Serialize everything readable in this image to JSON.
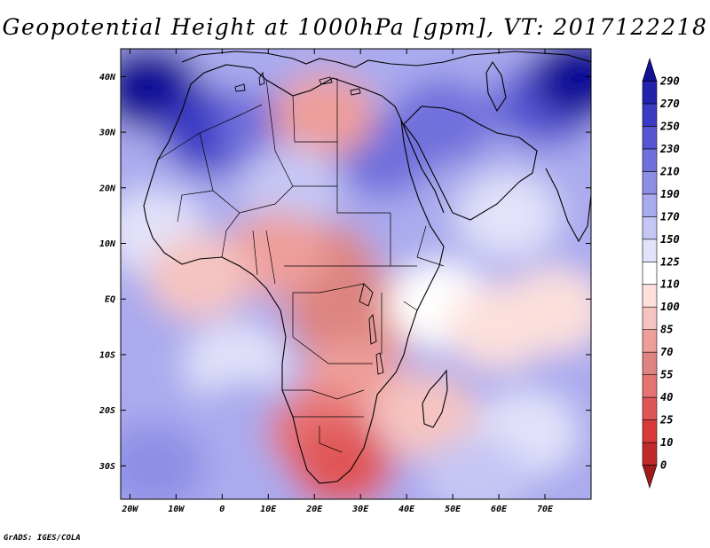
{
  "title": "Geopotential Height at 1000hPa [gpm], VT: 2017122218",
  "credit": "GrADS: IGES/COLA",
  "chart_data": {
    "type": "heatmap",
    "title": "Geopotential Height at 1000hPa [gpm], VT: 2017122218",
    "lon_range": [
      -22,
      80
    ],
    "lat_range": [
      -36,
      45
    ],
    "x_ticks": [
      {
        "value": -20,
        "label": "20W"
      },
      {
        "value": -10,
        "label": "10W"
      },
      {
        "value": 0,
        "label": "0"
      },
      {
        "value": 10,
        "label": "10E"
      },
      {
        "value": 20,
        "label": "20E"
      },
      {
        "value": 30,
        "label": "30E"
      },
      {
        "value": 40,
        "label": "40E"
      },
      {
        "value": 50,
        "label": "50E"
      },
      {
        "value": 60,
        "label": "60E"
      },
      {
        "value": 70,
        "label": "70E"
      }
    ],
    "y_ticks": [
      {
        "value": 40,
        "label": "40N"
      },
      {
        "value": 30,
        "label": "30N"
      },
      {
        "value": 20,
        "label": "20N"
      },
      {
        "value": 10,
        "label": "10N"
      },
      {
        "value": 0,
        "label": "EQ"
      },
      {
        "value": -10,
        "label": "10S"
      },
      {
        "value": -20,
        "label": "20S"
      },
      {
        "value": -30,
        "label": "30S"
      }
    ],
    "colorbar": {
      "labels": [
        "0",
        "10",
        "25",
        "40",
        "55",
        "70",
        "85",
        "100",
        "110",
        "125",
        "150",
        "170",
        "190",
        "210",
        "230",
        "250",
        "270",
        "290"
      ],
      "colors": [
        "#a01a1a",
        "#c12a2a",
        "#d83a3a",
        "#e05656",
        "#e67272",
        "#dd8480",
        "#ee9e9a",
        "#f6c4c0",
        "#fde0dc",
        "#ffffff",
        "#e2e2fa",
        "#c6c6f4",
        "#aaaaee",
        "#8e8ee6",
        "#7070dc",
        "#5656d2",
        "#3a3ac4",
        "#2222ac",
        "#111196"
      ]
    },
    "fields": [
      {
        "lon": -22,
        "lat": 45,
        "lon2": 80,
        "lat2": -36,
        "value": 180
      }
    ],
    "anomalies": [
      {
        "lon": -16,
        "lat": 38,
        "value": 300
      },
      {
        "lon": -2,
        "lat": 30,
        "value": 260
      },
      {
        "lon": 10,
        "lat": 30,
        "value": 215
      },
      {
        "lon": 35,
        "lat": 26,
        "value": 210
      },
      {
        "lon": 48,
        "lat": 32,
        "value": 215
      },
      {
        "lon": 70,
        "lat": 35,
        "value": 240
      },
      {
        "lon": 78,
        "lat": 40,
        "value": 290
      },
      {
        "lon": 22,
        "lat": 33,
        "value": 75
      },
      {
        "lon": 15,
        "lat": 20,
        "value": 150
      },
      {
        "lon": 62,
        "lat": 15,
        "value": 145
      },
      {
        "lon": -15,
        "lat": 12,
        "value": 125
      },
      {
        "lon": 22,
        "lat": 6,
        "value": 60
      },
      {
        "lon": 12,
        "lat": 8,
        "value": 80
      },
      {
        "lon": -5,
        "lat": 4,
        "value": 95
      },
      {
        "lon": 25,
        "lat": -3,
        "value": 65
      },
      {
        "lon": 33,
        "lat": -3,
        "value": 60
      },
      {
        "lon": 47,
        "lat": -1,
        "value": 112
      },
      {
        "lon": 60,
        "lat": -5,
        "value": 108
      },
      {
        "lon": 72,
        "lat": -2,
        "value": 100
      },
      {
        "lon": 28,
        "lat": -15,
        "value": 70
      },
      {
        "lon": 3,
        "lat": -12,
        "value": 135
      },
      {
        "lon": 5,
        "lat": -22,
        "value": 170
      },
      {
        "lon": -15,
        "lat": -30,
        "value": 205
      },
      {
        "lon": 21,
        "lat": -24,
        "value": 45
      },
      {
        "lon": 26,
        "lat": -30,
        "value": 25
      },
      {
        "lon": 44,
        "lat": -21,
        "value": 95
      },
      {
        "lon": 66,
        "lat": -24,
        "value": 140
      },
      {
        "lon": 55,
        "lat": -32,
        "value": 160
      }
    ]
  }
}
